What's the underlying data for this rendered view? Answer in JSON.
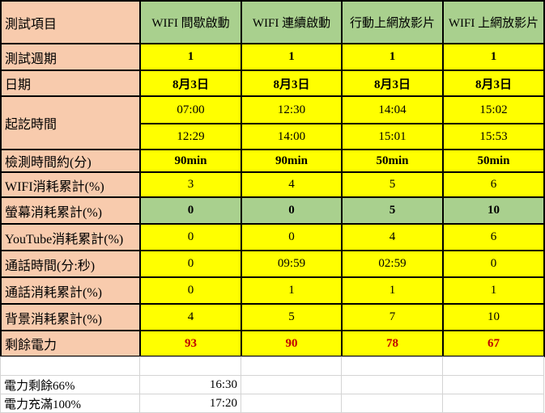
{
  "header": {
    "label": "測試項目",
    "columns": [
      "WIFI 間歇啟動",
      "WIFI 連續啟動",
      "行動上網放影片",
      "WIFI 上網放影片"
    ]
  },
  "rows": [
    {
      "label": "測試週期",
      "values": [
        "1",
        "1",
        "1",
        "1"
      ],
      "style": "b"
    },
    {
      "label": "日期",
      "values": [
        "8月3日",
        "8月3日",
        "8月3日",
        "8月3日"
      ],
      "style": "b"
    },
    {
      "label": "起訖時間",
      "start": [
        "07:00",
        "12:30",
        "14:04",
        "15:02"
      ],
      "end": [
        "12:29",
        "14:00",
        "15:01",
        "15:53"
      ]
    },
    {
      "label": "檢測時間約(分)",
      "values": [
        "90min",
        "90min",
        "50min",
        "50min"
      ],
      "style": "b"
    },
    {
      "label": "WIFI消耗累計(%)",
      "values": [
        "3",
        "4",
        "5",
        "6"
      ],
      "style": ""
    },
    {
      "label": "螢幕消耗累計(%)",
      "values": [
        "0",
        "0",
        "5",
        "10"
      ],
      "style": "green"
    },
    {
      "label": "YouTube消耗累計(%)",
      "values": [
        "0",
        "0",
        "4",
        "6"
      ],
      "style": ""
    },
    {
      "label": "通話時間(分:秒)",
      "values": [
        "0",
        "09:59",
        "02:59",
        "0"
      ],
      "style": ""
    },
    {
      "label": "通話消耗累計(%)",
      "values": [
        "0",
        "1",
        "1",
        "1"
      ],
      "style": ""
    },
    {
      "label": "背景消耗累計(%)",
      "values": [
        "4",
        "5",
        "7",
        "10"
      ],
      "style": ""
    },
    {
      "label": "剩餘電力",
      "values": [
        "93",
        "90",
        "78",
        "67"
      ],
      "style": "red"
    }
  ],
  "notes": [
    {
      "label": "電力剩餘66%",
      "time": "16:30"
    },
    {
      "label": "電力充滿100%",
      "time": "17:20"
    }
  ],
  "colors": {
    "label_bg": "#f8cbad",
    "header_bg": "#a9d08e",
    "value_bg": "#ffff00",
    "highlight_text": "#c00000"
  }
}
